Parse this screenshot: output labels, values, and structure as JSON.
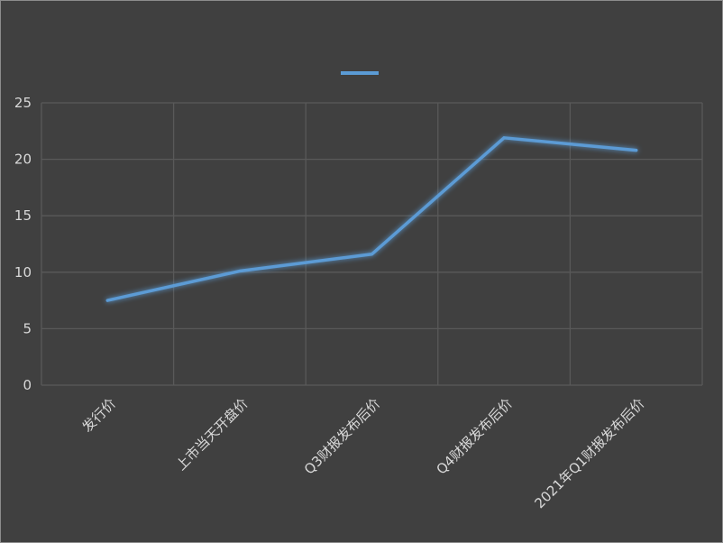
{
  "chart_data": {
    "type": "line",
    "categories": [
      "发行价",
      "上市当天开盘价",
      "Q3财报发布后价",
      "Q4财报发布后价",
      "2021年Q1财报发布后价"
    ],
    "series": [
      {
        "values": [
          7.5,
          10.1,
          11.6,
          21.9,
          20.8
        ],
        "color": "#5b9bd5"
      }
    ],
    "title": "",
    "xlabel": "",
    "ylabel": "",
    "ylim": [
      0,
      25
    ],
    "yticks": [
      0,
      5,
      10,
      15,
      20,
      25
    ],
    "grid": true,
    "legend": "top-center",
    "colors": {
      "background": "#404040",
      "grid": "#595959",
      "text": "#d9d9d9",
      "line": "#5b9bd5"
    }
  }
}
